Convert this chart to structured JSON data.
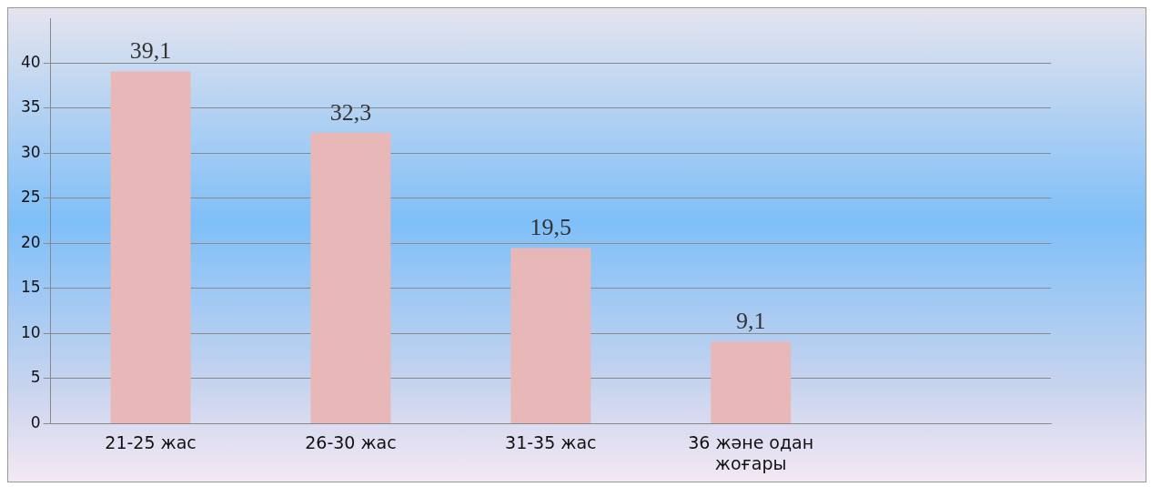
{
  "chart_data": {
    "type": "bar",
    "categories": [
      "21-25 жас",
      "26-30 жас",
      "31-35 жас",
      "36 және одан жоғары",
      null
    ],
    "values": [
      39.1,
      32.3,
      19.5,
      9.1,
      null
    ],
    "value_labels": [
      "39,1",
      "32,3",
      "19,5",
      "9,1",
      null
    ],
    "color": "#e8b8b8",
    "ylim": [
      0,
      45
    ],
    "yticks": [
      0,
      5,
      10,
      15,
      20,
      25,
      30,
      35,
      40
    ],
    "grid": "y",
    "legend": false
  }
}
